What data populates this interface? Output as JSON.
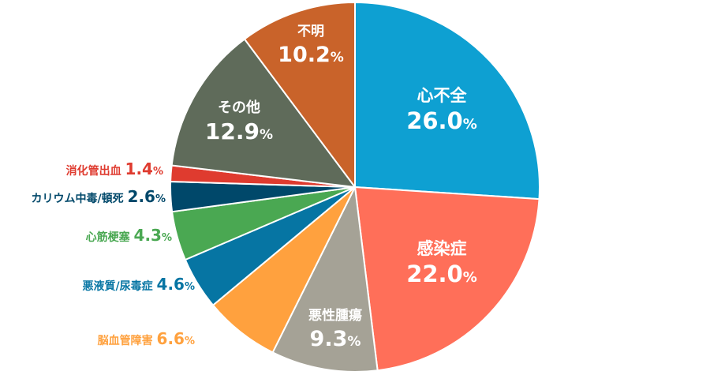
{
  "chart_data": {
    "type": "pie",
    "unit": "%",
    "slices": [
      {
        "label": "心不全",
        "value": 26.0,
        "color": "#0ea0d2"
      },
      {
        "label": "感染症",
        "value": 22.0,
        "color": "#ff6f59"
      },
      {
        "label": "悪性腫瘍",
        "value": 9.3,
        "color": "#a5a296"
      },
      {
        "label": "脳血管障害",
        "value": 6.6,
        "color": "#ffa13e"
      },
      {
        "label": "悪液質/尿毒症",
        "value": 4.6,
        "color": "#0675a3"
      },
      {
        "label": "心筋梗塞",
        "value": 4.3,
        "color": "#4aa852"
      },
      {
        "label": "カリウム中毒/頓死",
        "value": 2.6,
        "color": "#00486a"
      },
      {
        "label": "消化管出血",
        "value": 1.4,
        "color": "#df3b2f"
      },
      {
        "label": "その他",
        "value": 12.9,
        "color": "#5f6b5a"
      },
      {
        "label": "不明",
        "value": 10.2,
        "color": "#c9632a"
      }
    ]
  }
}
